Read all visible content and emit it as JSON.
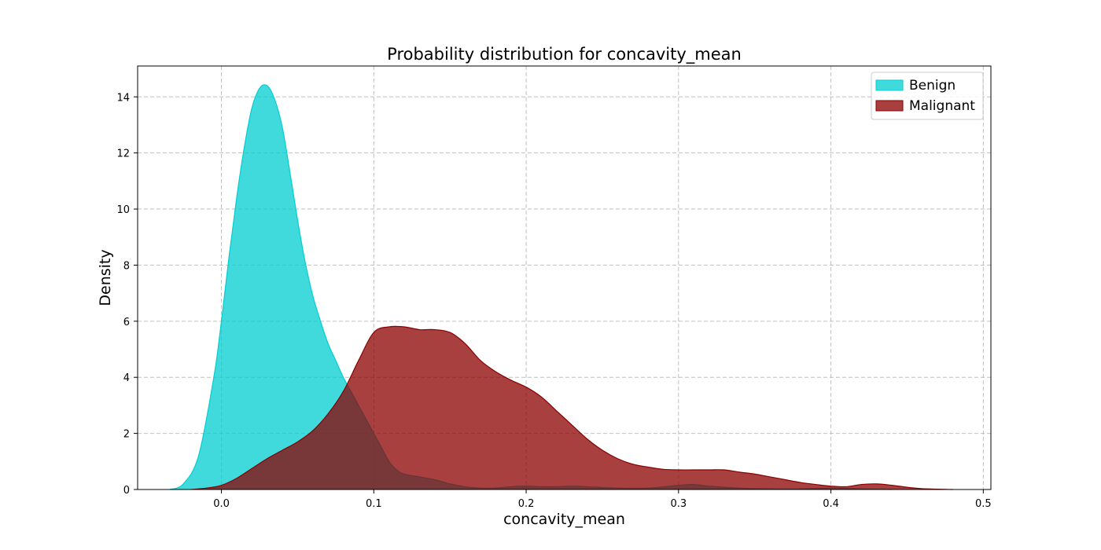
{
  "chart_data": {
    "type": "area",
    "title": "Probability distribution for concavity_mean",
    "xlabel": "concavity_mean",
    "ylabel": "Density",
    "xlim": [
      -0.055,
      0.505
    ],
    "ylim": [
      0,
      15.1
    ],
    "xticks": [
      0.0,
      0.1,
      0.2,
      0.3,
      0.4,
      0.5
    ],
    "xtick_labels": [
      "0.0",
      "0.1",
      "0.2",
      "0.3",
      "0.4",
      "0.5"
    ],
    "yticks": [
      0,
      2,
      4,
      6,
      8,
      10,
      12,
      14
    ],
    "ytick_labels": [
      "0",
      "2",
      "4",
      "6",
      "8",
      "10",
      "12",
      "14"
    ],
    "grid": true,
    "legend_position": "top-right",
    "series": [
      {
        "name": "Benign",
        "color": "#00CED1",
        "alpha": 0.75,
        "x": [
          -0.034,
          -0.025,
          -0.015,
          -0.005,
          0.0,
          0.005,
          0.01,
          0.015,
          0.02,
          0.025,
          0.03,
          0.035,
          0.04,
          0.045,
          0.05,
          0.055,
          0.06,
          0.065,
          0.07,
          0.075,
          0.08,
          0.085,
          0.09,
          0.095,
          0.1,
          0.105,
          0.11,
          0.115,
          0.12,
          0.13,
          0.14,
          0.15,
          0.16,
          0.17,
          0.18,
          0.19,
          0.2,
          0.21,
          0.22,
          0.23,
          0.24,
          0.26,
          0.28,
          0.3,
          0.31,
          0.32,
          0.34,
          0.36,
          0.38,
          0.4,
          0.42,
          0.44
        ],
        "y": [
          0,
          0.2,
          1.2,
          4.0,
          6.0,
          8.3,
          10.4,
          12.2,
          13.6,
          14.3,
          14.4,
          13.9,
          12.9,
          11.3,
          9.6,
          8.1,
          6.9,
          6.0,
          5.2,
          4.6,
          4.0,
          3.5,
          3.0,
          2.5,
          2.0,
          1.5,
          1.0,
          0.7,
          0.55,
          0.45,
          0.35,
          0.2,
          0.1,
          0.05,
          0.05,
          0.1,
          0.12,
          0.1,
          0.1,
          0.12,
          0.1,
          0.05,
          0.05,
          0.15,
          0.18,
          0.12,
          0.05,
          0.02,
          0.02,
          0.05,
          0.02,
          0
        ]
      },
      {
        "name": "Malignant",
        "color": "#8B0000",
        "alpha": 0.75,
        "x": [
          -0.02,
          -0.01,
          0.0,
          0.01,
          0.02,
          0.03,
          0.04,
          0.05,
          0.06,
          0.07,
          0.08,
          0.09,
          0.1,
          0.11,
          0.12,
          0.13,
          0.14,
          0.15,
          0.16,
          0.17,
          0.18,
          0.19,
          0.2,
          0.21,
          0.22,
          0.23,
          0.24,
          0.25,
          0.26,
          0.27,
          0.28,
          0.29,
          0.3,
          0.31,
          0.32,
          0.33,
          0.34,
          0.35,
          0.36,
          0.37,
          0.38,
          0.39,
          0.4,
          0.41,
          0.42,
          0.43,
          0.44,
          0.45,
          0.46,
          0.48
        ],
        "y": [
          0,
          0.05,
          0.15,
          0.4,
          0.75,
          1.1,
          1.4,
          1.7,
          2.1,
          2.7,
          3.5,
          4.6,
          5.6,
          5.8,
          5.8,
          5.7,
          5.7,
          5.6,
          5.2,
          4.6,
          4.2,
          3.9,
          3.65,
          3.3,
          2.8,
          2.3,
          1.8,
          1.4,
          1.1,
          0.9,
          0.8,
          0.72,
          0.7,
          0.7,
          0.7,
          0.7,
          0.62,
          0.55,
          0.45,
          0.35,
          0.25,
          0.18,
          0.12,
          0.1,
          0.18,
          0.2,
          0.15,
          0.08,
          0.03,
          0
        ]
      }
    ]
  }
}
